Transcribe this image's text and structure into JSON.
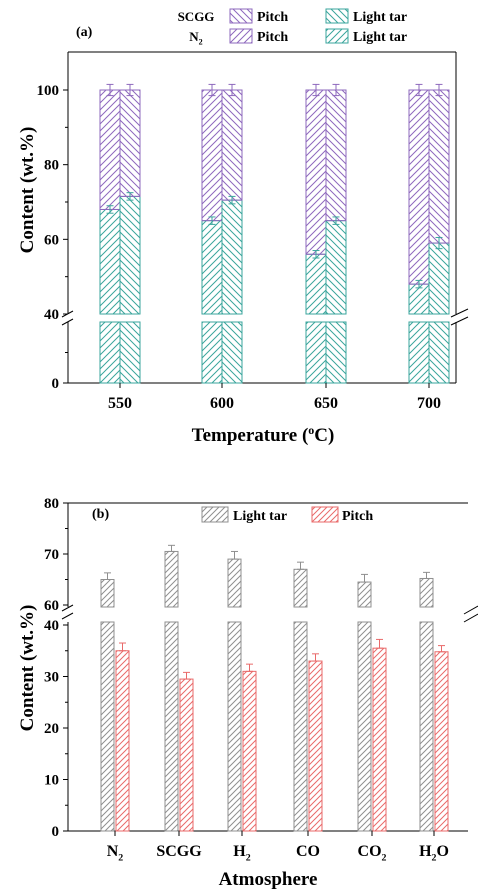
{
  "chart_data": [
    {
      "panel": "(a)",
      "type": "bar",
      "stacked": true,
      "xlabel": "Temperature (°C)",
      "ylabel": "Content (wt.%)",
      "categories": [
        "550",
        "600",
        "650",
        "700"
      ],
      "groups": [
        "N2",
        "SCGG"
      ],
      "legend_rows": [
        "SCGG",
        "N2"
      ],
      "legend_items": [
        "Pitch",
        "Light tar"
      ],
      "series": [
        {
          "name": "Light tar",
          "atmosphere": "N2",
          "values": [
            68,
            65,
            56,
            48
          ],
          "errors": [
            1.0,
            1.0,
            1.0,
            1.0
          ]
        },
        {
          "name": "Pitch",
          "atmosphere": "N2",
          "values": [
            32,
            35,
            44,
            52
          ]
        },
        {
          "name": "Light tar",
          "atmosphere": "SCGG",
          "values": [
            71.5,
            70.5,
            65,
            59
          ],
          "errors": [
            1.0,
            1.0,
            1.0,
            1.5
          ]
        },
        {
          "name": "Pitch",
          "atmosphere": "SCGG",
          "values": [
            28.5,
            29.5,
            35,
            41
          ]
        }
      ],
      "total_error": 1.5,
      "ylim": [
        0,
        110
      ],
      "axis_break": [
        10,
        40
      ],
      "yticks": [
        0,
        40,
        60,
        80,
        100
      ],
      "colors": {
        "Light tar": "#3aa59c",
        "Pitch": "#8e68bd"
      },
      "legend_position": "top-right"
    },
    {
      "panel": "(b)",
      "type": "bar",
      "xlabel": "Atmosphere",
      "ylabel": "Content (wt.%)",
      "categories": [
        "N2",
        "SCGG",
        "H2",
        "CO",
        "CO2",
        "H2O"
      ],
      "series": [
        {
          "name": "Light tar",
          "values": [
            65,
            70.5,
            69,
            67,
            64.5,
            65.2
          ],
          "errors": [
            1.3,
            1.2,
            1.5,
            1.4,
            1.5,
            1.2
          ]
        },
        {
          "name": "Pitch",
          "values": [
            35,
            29.5,
            31,
            33,
            35.5,
            34.8
          ],
          "errors": [
            1.5,
            1.3,
            1.4,
            1.4,
            1.7,
            1.2
          ]
        }
      ],
      "ylim": [
        0,
        80
      ],
      "axis_break": [
        40,
        60
      ],
      "yticks": [
        0,
        10,
        20,
        30,
        40,
        60,
        70,
        80
      ],
      "colors": {
        "Light tar": "#8f8f8f",
        "Pitch": "#e96a6a"
      },
      "legend_position": "top-center"
    }
  ]
}
